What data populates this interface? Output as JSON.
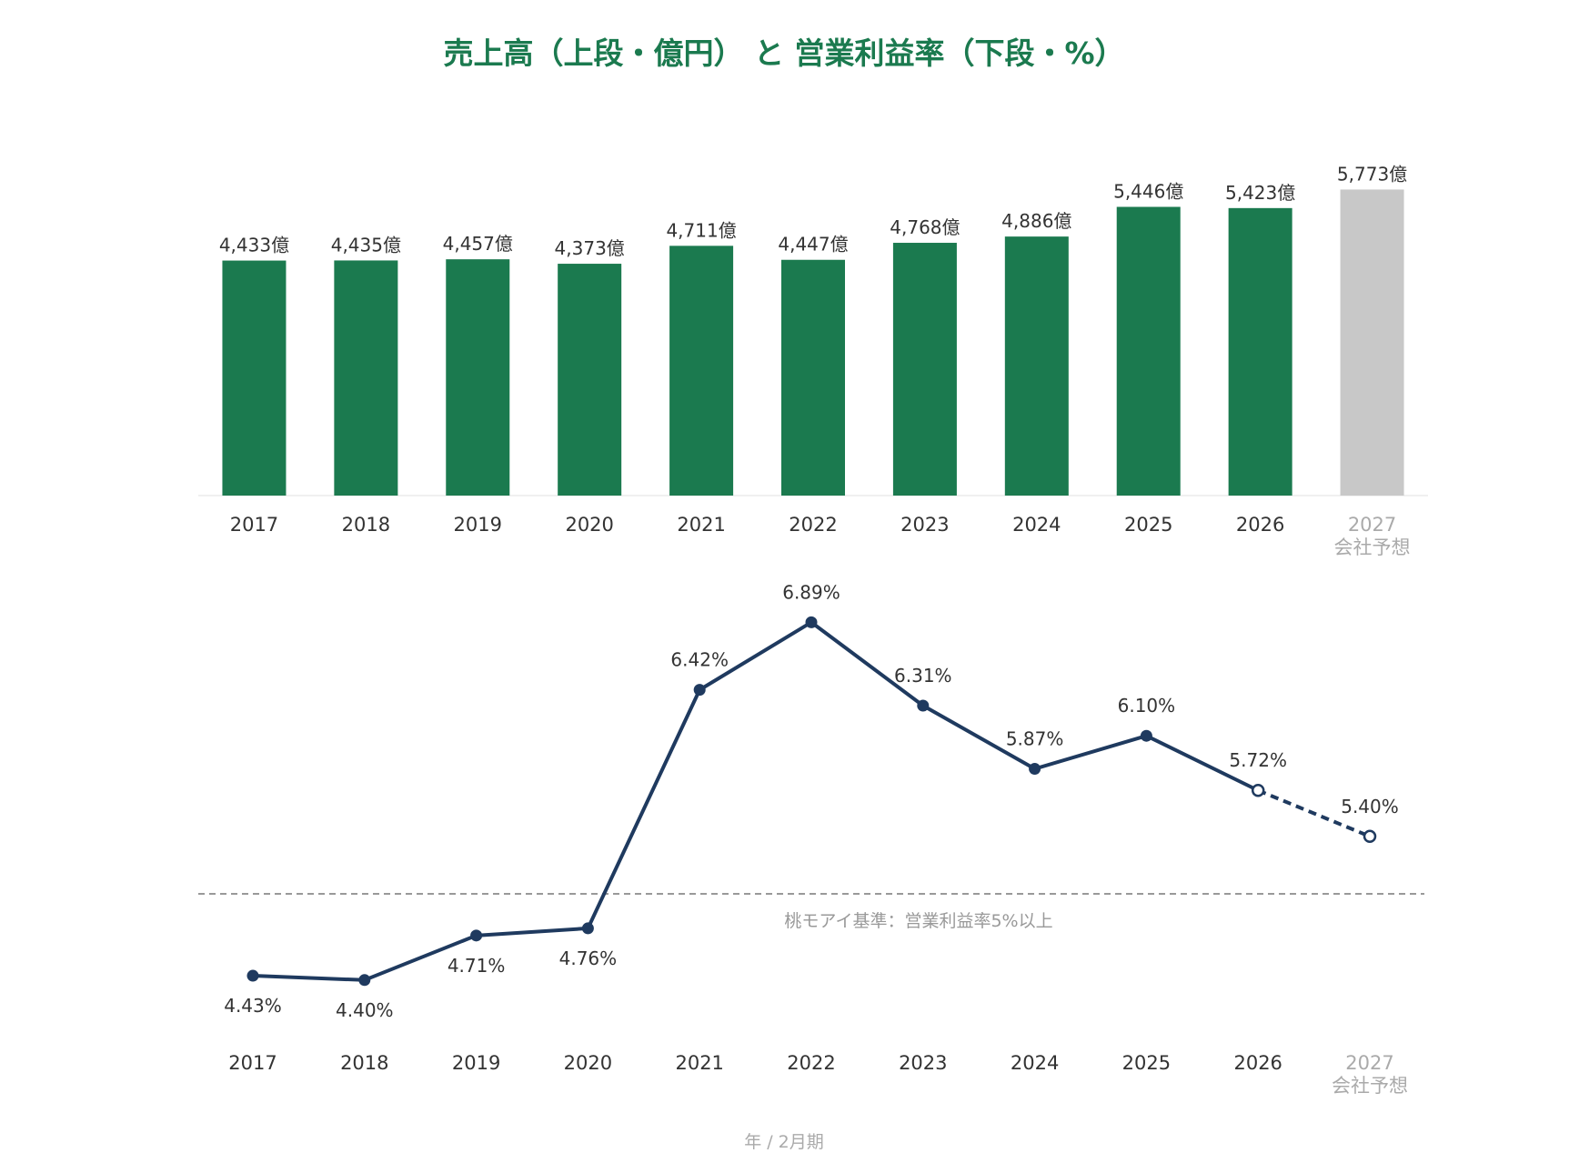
{
  "chart_data": [
    {
      "type": "bar",
      "title": "売上高（上段・億円） と 営業利益率（下段・%）",
      "categories": [
        "2017",
        "2018",
        "2019",
        "2020",
        "2021",
        "2022",
        "2023",
        "2024",
        "2025",
        "2026",
        "2027"
      ],
      "category_sublabels": [
        "",
        "",
        "",
        "",
        "",
        "",
        "",
        "",
        "",
        "",
        "会社予想"
      ],
      "values": [
        4433,
        4435,
        4457,
        4373,
        4711,
        4447,
        4768,
        4886,
        5446,
        5423,
        5773
      ],
      "data_labels": [
        "4,433億",
        "4,435億",
        "4,457億",
        "4,373億",
        "4,711億",
        "4,447億",
        "4,768億",
        "4,886億",
        "5,446億",
        "5,423億",
        "5,773億"
      ],
      "forecast_index": 10,
      "colors": {
        "actual": "#1b7a4f",
        "forecast": "#c8c8c8"
      }
    },
    {
      "type": "line",
      "categories": [
        "2017",
        "2018",
        "2019",
        "2020",
        "2021",
        "2022",
        "2023",
        "2024",
        "2025",
        "2026",
        "2027"
      ],
      "category_sublabels": [
        "",
        "",
        "",
        "",
        "",
        "",
        "",
        "",
        "",
        "",
        "会社予想"
      ],
      "values": [
        4.43,
        4.4,
        4.71,
        4.76,
        6.42,
        6.89,
        6.31,
        5.87,
        6.1,
        5.72,
        5.4
      ],
      "data_labels": [
        "4.43%",
        "4.40%",
        "4.71%",
        "4.76%",
        "6.42%",
        "6.89%",
        "6.31%",
        "5.87%",
        "6.10%",
        "5.72%",
        "5.40%"
      ],
      "open_marker_from_index": 9,
      "dashed_from_index": 9,
      "reference_line": {
        "value": 5.0,
        "label": "桃モアイ基準：営業利益率5%以上"
      },
      "xlabel": "年 / 2月期",
      "colors": {
        "line": "#1f3a5f",
        "reference": "#999999"
      }
    }
  ]
}
